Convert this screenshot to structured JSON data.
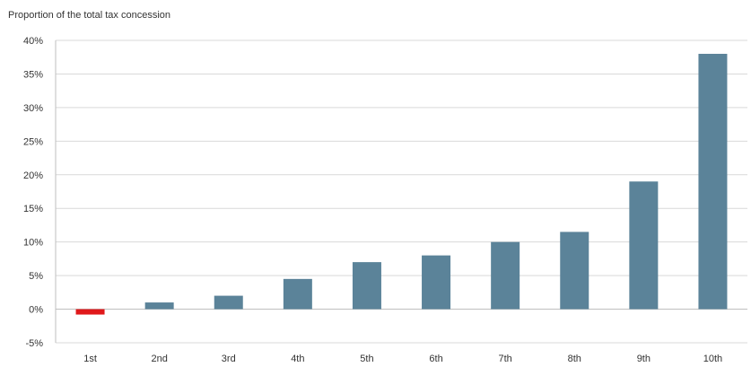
{
  "chart_data": {
    "type": "bar",
    "title": "Proportion of the total tax concession",
    "xlabel": "",
    "ylabel": "",
    "categories": [
      "1st",
      "2nd",
      "3rd",
      "4th",
      "5th",
      "6th",
      "7th",
      "8th",
      "9th",
      "10th"
    ],
    "values": [
      -0.8,
      1.0,
      2.0,
      4.5,
      7.0,
      8.0,
      10.0,
      11.5,
      19.0,
      38.0
    ],
    "ylim": [
      -5,
      40
    ],
    "yticks": [
      -5,
      0,
      5,
      10,
      15,
      20,
      25,
      30,
      35,
      40
    ],
    "ytick_labels": [
      "-5%",
      "0%",
      "5%",
      "10%",
      "15%",
      "20%",
      "25%",
      "30%",
      "35%",
      "40%"
    ],
    "grid": true,
    "colors": {
      "positive": "#5b8399",
      "negative": "#e0191b",
      "grid": "#d9d9d9",
      "axis": "#bfbfbf"
    }
  }
}
